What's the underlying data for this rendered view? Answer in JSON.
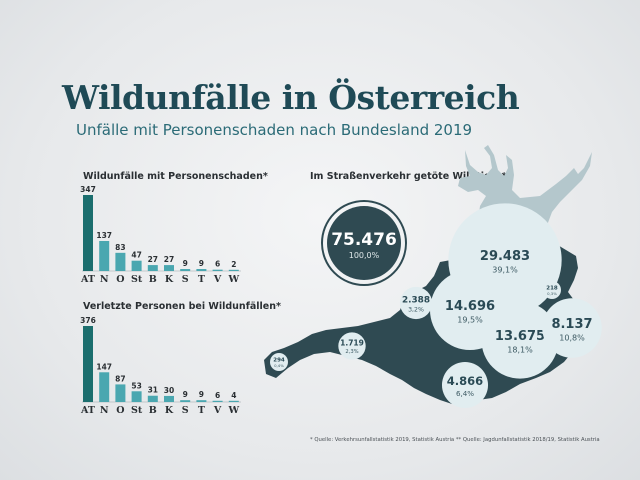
{
  "title": "Wildunfälle in Österreich",
  "subtitle": "Unfälle mit Personenschaden nach Bundesland 2019",
  "footnote": "* Quelle: Verkehrsunfallstatistik 2019, Statistik Austria ** Quelle: Jagdunfallstatistik 2018/19, Statistik Austria",
  "colors": {
    "title": "#1f4a56",
    "bar_total": "#1b6e6e",
    "bar_state": "#4aa7b0",
    "map": "#2f4a52",
    "stag": "#b4c7cc",
    "bubble_fill": "#e1edf0",
    "bubble_big_fill": "#2f4a52",
    "bubble_big_stroke": "#2f4a52"
  },
  "chart_data": [
    {
      "type": "bar",
      "title": "Wildunfälle mit Personenschaden*",
      "categories": [
        "AT",
        "N",
        "O",
        "St",
        "B",
        "K",
        "S",
        "T",
        "V",
        "W"
      ],
      "values": [
        347,
        137,
        83,
        47,
        27,
        27,
        9,
        9,
        6,
        2
      ],
      "value_labels": [
        "347",
        "137",
        "83",
        "47",
        "27",
        "27",
        "9",
        "9",
        "6",
        "2"
      ]
    },
    {
      "type": "bar",
      "title": "Verletzte Personen bei Wildunfällen*",
      "categories": [
        "AT",
        "N",
        "O",
        "St",
        "B",
        "K",
        "S",
        "T",
        "V",
        "W"
      ],
      "values": [
        376,
        147,
        87,
        53,
        31,
        30,
        9,
        9,
        6,
        4
      ],
      "value_labels": [
        "376",
        "147",
        "87",
        "53",
        "31",
        "30",
        "9",
        "9",
        "6",
        "4"
      ]
    },
    {
      "type": "bubble_map",
      "title": "Im Straßenverkehr getöte Wildtiere**",
      "total": {
        "value": 75476,
        "label": "75.476",
        "share": "100,0%"
      },
      "regions": [
        {
          "value": 29483,
          "label": "29.483",
          "share": "39,1%"
        },
        {
          "value": 14696,
          "label": "14.696",
          "share": "19,5%"
        },
        {
          "value": 13675,
          "label": "13.675",
          "share": "18,1%"
        },
        {
          "value": 8137,
          "label": "8.137",
          "share": "10,8%"
        },
        {
          "value": 4866,
          "label": "4.866",
          "share": "6,4%"
        },
        {
          "value": 2388,
          "label": "2.388",
          "share": "3,2%"
        },
        {
          "value": 1719,
          "label": "1.719",
          "share": "2,3%"
        },
        {
          "value": 294,
          "label": "294",
          "share": "0,4%"
        },
        {
          "value": 218,
          "label": "218",
          "share": "0,3%"
        }
      ]
    }
  ]
}
